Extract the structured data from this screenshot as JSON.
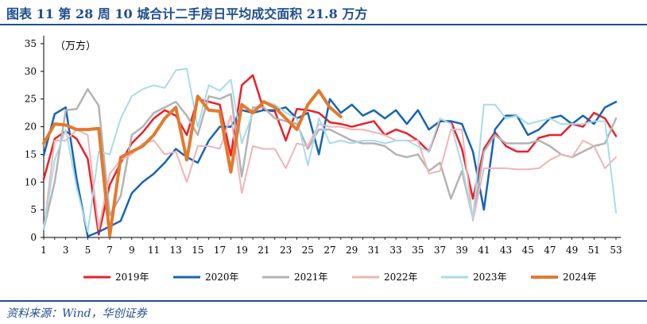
{
  "header": {
    "title": "图表  11    第 28 周 10 城合计二手房日平均成交面积 21.8 万方"
  },
  "footer": {
    "source": "资料来源：Wind，华创证券"
  },
  "chart_data": {
    "type": "line",
    "unit_label": "（万方）",
    "ylim": [
      0,
      35
    ],
    "yticks": [
      0,
      5,
      10,
      15,
      20,
      25,
      30,
      35
    ],
    "xlim": [
      1,
      53
    ],
    "xticks": [
      1,
      3,
      5,
      7,
      9,
      11,
      13,
      15,
      17,
      19,
      21,
      23,
      25,
      27,
      29,
      31,
      33,
      35,
      37,
      39,
      41,
      43,
      45,
      47,
      49,
      51,
      53
    ],
    "legend_position": "bottom",
    "grid": false,
    "series": [
      {
        "name": "2019年",
        "color": "#e8202a",
        "width": 2.5,
        "values": [
          10.5,
          17.8,
          19.2,
          17.8,
          14.2,
          0.5,
          9.5,
          13.5,
          17.0,
          19.0,
          21.5,
          23.0,
          22.0,
          18.5,
          25.0,
          24.5,
          24.0,
          14.8,
          27.5,
          29.3,
          23.0,
          22.8,
          17.5,
          23.2,
          23.0,
          22.5,
          20.8,
          20.5,
          20.0,
          20.5,
          21.0,
          18.5,
          19.5,
          18.8,
          17.5,
          15.5,
          21.0,
          21.0,
          16.0,
          7.0,
          16.0,
          19.0,
          16.5,
          15.5,
          15.5,
          18.0,
          18.5,
          18.5,
          20.5,
          20.0,
          22.5,
          21.5,
          18.3
        ]
      },
      {
        "name": "2020年",
        "color": "#1764b4",
        "width": 2.5,
        "values": [
          14.8,
          22.3,
          23.5,
          10.5,
          0.2,
          1.0,
          2.0,
          3.0,
          8.0,
          10.0,
          11.5,
          13.5,
          16.0,
          14.5,
          13.5,
          17.5,
          20.0,
          20.0,
          23.0,
          22.5,
          23.0,
          23.0,
          23.5,
          21.5,
          22.5,
          15.0,
          25.0,
          22.5,
          24.0,
          22.0,
          23.0,
          21.5,
          23.0,
          20.5,
          23.0,
          19.5,
          21.0,
          21.0,
          20.5,
          15.5,
          5.0,
          19.5,
          22.0,
          22.0,
          18.5,
          19.5,
          21.5,
          22.0,
          20.5,
          22.0,
          20.5,
          23.5,
          24.5
        ]
      },
      {
        "name": "2021年",
        "color": "#b3b3b3",
        "width": 2.5,
        "values": [
          1.5,
          10.0,
          23.0,
          23.2,
          26.8,
          23.8,
          4.0,
          7.5,
          18.5,
          20.0,
          22.5,
          23.5,
          24.5,
          22.0,
          18.5,
          25.5,
          25.0,
          25.9,
          11.0,
          23.5,
          23.5,
          21.5,
          21.0,
          20.5,
          16.0,
          19.5,
          19.5,
          18.5,
          17.5,
          17.0,
          17.0,
          16.5,
          15.0,
          14.5,
          15.0,
          12.0,
          13.5,
          7.0,
          12.0,
          3.5,
          15.5,
          18.5,
          17.0,
          17.0,
          17.0,
          17.5,
          16.5,
          15.0,
          14.5,
          15.5,
          16.5,
          17.0,
          21.5
        ]
      },
      {
        "name": "2022年",
        "color": "#f0b4b6",
        "width": 2,
        "values": [
          1.5,
          17.5,
          17.5,
          19.5,
          18.5,
          1.5,
          11.5,
          14.0,
          15.0,
          17.0,
          17.5,
          15.0,
          15.5,
          10.0,
          16.5,
          16.5,
          16.0,
          22.0,
          8.0,
          16.5,
          16.0,
          16.0,
          12.5,
          17.0,
          16.5,
          20.5,
          20.0,
          20.0,
          19.5,
          19.5,
          19.0,
          18.5,
          17.5,
          17.5,
          17.5,
          11.5,
          12.0,
          19.5,
          19.5,
          3.0,
          12.5,
          12.5,
          12.5,
          12.3,
          12.3,
          12.5,
          14.0,
          15.0,
          14.5,
          17.5,
          16.5,
          12.5,
          14.5
        ]
      },
      {
        "name": "2023年",
        "color": "#a8dbea",
        "width": 2,
        "values": [
          1.5,
          14.0,
          19.5,
          9.0,
          1.0,
          15.5,
          15.0,
          21.5,
          25.5,
          26.8,
          27.5,
          27.0,
          30.2,
          30.5,
          20.0,
          27.5,
          26.5,
          28.5,
          17.0,
          22.5,
          24.5,
          24.0,
          22.5,
          21.5,
          13.0,
          21.5,
          17.0,
          17.5,
          17.0,
          17.5,
          17.5,
          17.0,
          17.5,
          17.5,
          16.5,
          15.5,
          21.5,
          20.5,
          13.0,
          3.5,
          24.0,
          24.0,
          21.5,
          22.0,
          20.5,
          21.0,
          21.5,
          20.5,
          20.5,
          20.5,
          21.0,
          21.0,
          4.5
        ]
      },
      {
        "name": "2024年",
        "color": "#e27a2e",
        "width": 4,
        "values": [
          17.0,
          20.5,
          20.3,
          19.5,
          19.5,
          19.7,
          0.3,
          14.5,
          15.5,
          16.5,
          18.5,
          21.5,
          23.5,
          14.0,
          25.5,
          23.0,
          22.8,
          11.8,
          24.0,
          22.5,
          24.5,
          23.5,
          21.5,
          19.5,
          24.0,
          26.5,
          23.5,
          21.8
        ]
      }
    ]
  }
}
